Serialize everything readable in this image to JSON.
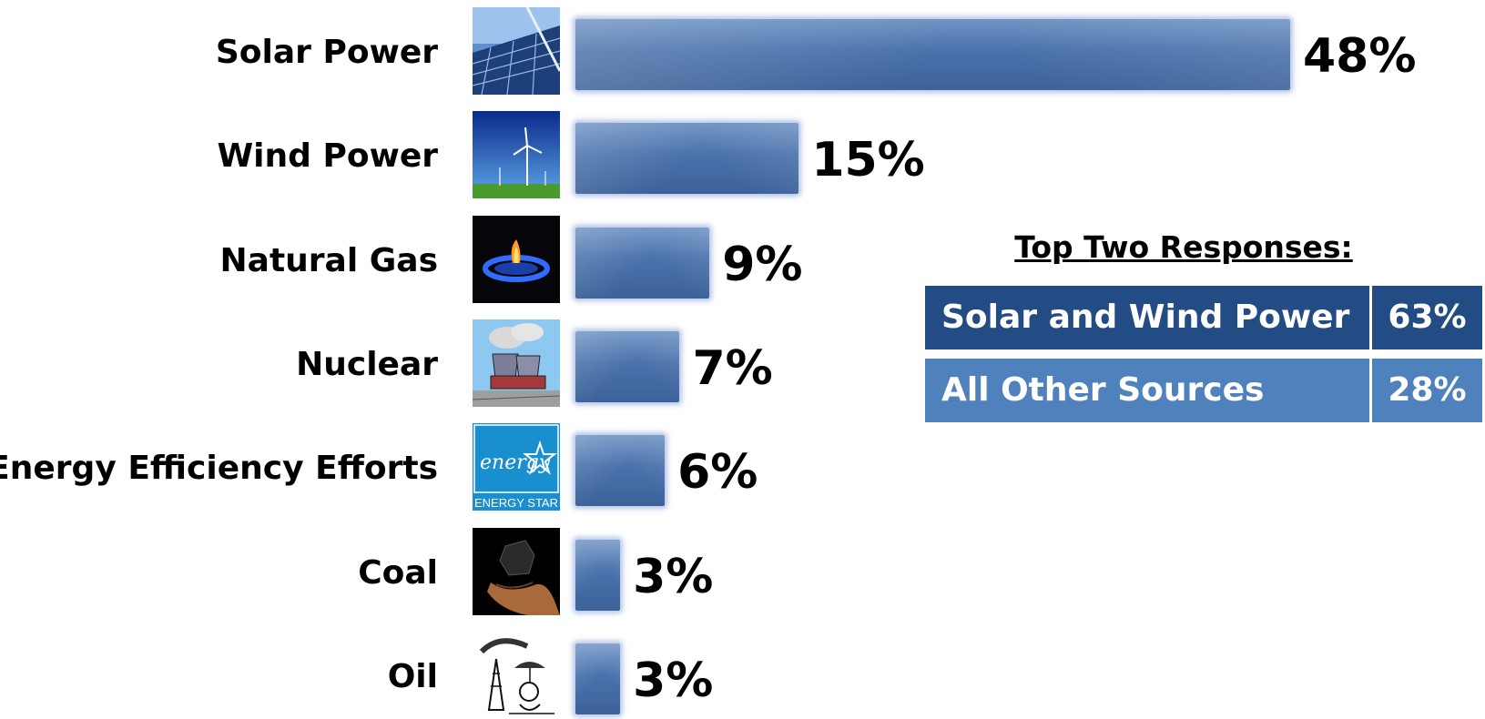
{
  "chart_data": {
    "type": "bar",
    "orientation": "horizontal",
    "categories": [
      "Solar Power",
      "Wind Power",
      "Natural Gas",
      "Nuclear",
      "Energy Efficiency Efforts",
      "Coal",
      "Oil"
    ],
    "values": [
      48,
      15,
      9,
      7,
      6,
      3,
      3
    ],
    "value_labels": [
      "48%",
      "15%",
      "9%",
      "7%",
      "6%",
      "3%",
      "3%"
    ],
    "thumbnails": [
      "solar-panel-icon",
      "wind-turbine-icon",
      "gas-flame-icon",
      "nuclear-plant-icon",
      "energy-star-icon",
      "coal-hand-icon",
      "oil-derrick-icon"
    ],
    "energy_star_text": "ENERGY STAR",
    "energy_star_script": "energy",
    "title": "",
    "xlabel": "",
    "ylabel": "",
    "xlim": [
      0,
      48
    ],
    "grid": false,
    "colors": {
      "bar": "#4a72ab",
      "bar_glow": "#7896d2"
    }
  },
  "summary": {
    "title": "Top Two Responses:",
    "rows": [
      {
        "label": "Solar and Wind Power",
        "value": "63%",
        "color": "#234c85"
      },
      {
        "label": "All Other Sources",
        "value": "28%",
        "color": "#4f81bd"
      }
    ]
  }
}
